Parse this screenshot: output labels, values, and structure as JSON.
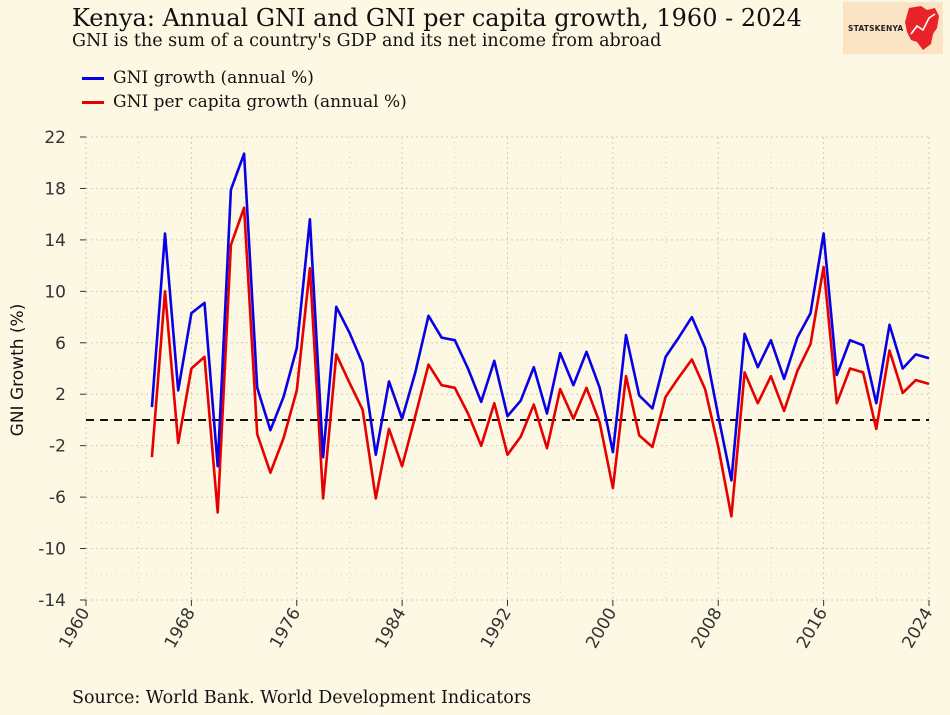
{
  "title": "Kenya: Annual GNI and GNI per capita growth, 1960 - 2024",
  "subtitle": "GNI is the sum of a country's GDP and its net income from abroad",
  "logo_text": "STATSKENYA",
  "source": "Source: World Bank. World Development Indicators",
  "colors": {
    "background": "#fdf8e3",
    "gni": "#0a00e6",
    "gni_pc": "#e60000",
    "grid": "#cdcdb8",
    "zero_line": "#111111",
    "logo_bg": "#fbe4c4",
    "logo_map": "#e8232a"
  },
  "chart_data": {
    "type": "line",
    "title": "Kenya: Annual GNI and GNI per capita growth, 1960 - 2024",
    "xlabel": "",
    "ylabel": "GNI Growth (%)",
    "xlim": [
      1960,
      2024
    ],
    "ylim": [
      -14,
      22
    ],
    "xticks": [
      1960,
      1968,
      1976,
      1984,
      1992,
      2000,
      2008,
      2016,
      2024
    ],
    "yticks": [
      -14,
      -10,
      -6,
      -2,
      2,
      6,
      10,
      14,
      18,
      22
    ],
    "grid": true,
    "legend_position": "top-left",
    "reference_line": 0,
    "x": [
      1965,
      1966,
      1967,
      1968,
      1969,
      1970,
      1971,
      1972,
      1973,
      1974,
      1975,
      1976,
      1977,
      1978,
      1979,
      1980,
      1981,
      1982,
      1983,
      1984,
      1985,
      1986,
      1987,
      1988,
      1989,
      1990,
      1991,
      1992,
      1993,
      1994,
      1995,
      1996,
      1997,
      1998,
      1999,
      2000,
      2001,
      2002,
      2003,
      2004,
      2005,
      2006,
      2007,
      2008,
      2009,
      2010,
      2011,
      2012,
      2013,
      2014,
      2015,
      2016,
      2017,
      2018,
      2019,
      2020,
      2021,
      2022,
      2023,
      2024
    ],
    "series": [
      {
        "name": "GNI growth (annual %)",
        "values": [
          1.0,
          14.5,
          2.3,
          8.3,
          9.1,
          -3.6,
          17.9,
          20.7,
          2.5,
          -0.8,
          1.8,
          5.6,
          15.6,
          -2.9,
          8.8,
          6.8,
          4.4,
          -2.7,
          3.0,
          0.1,
          3.7,
          8.1,
          6.4,
          6.2,
          4.0,
          1.4,
          4.6,
          0.3,
          1.5,
          4.1,
          0.5,
          5.2,
          2.7,
          5.3,
          2.5,
          -2.5,
          6.6,
          1.9,
          0.9,
          4.9,
          6.4,
          8.0,
          5.6,
          0.3,
          -4.7,
          6.7,
          4.1,
          6.2,
          3.2,
          6.4,
          8.3,
          14.5,
          3.5,
          6.2,
          5.8,
          1.3,
          7.4,
          4.0,
          5.1,
          4.8
        ]
      },
      {
        "name": "GNI per capita growth (annual %)",
        "values": [
          -2.9,
          10.0,
          -1.8,
          4.0,
          4.9,
          -7.2,
          13.6,
          16.5,
          -1.1,
          -4.1,
          -1.4,
          2.3,
          11.8,
          -6.1,
          5.1,
          2.9,
          0.8,
          -6.1,
          -0.7,
          -3.6,
          0.3,
          4.3,
          2.7,
          2.5,
          0.5,
          -2.0,
          1.3,
          -2.7,
          -1.3,
          1.2,
          -2.2,
          2.4,
          0.1,
          2.5,
          -0.2,
          -5.3,
          3.4,
          -1.2,
          -2.1,
          1.8,
          3.3,
          4.7,
          2.4,
          -2.1,
          -7.5,
          3.7,
          1.3,
          3.4,
          0.7,
          3.8,
          5.9,
          11.9,
          1.3,
          4.0,
          3.7,
          -0.7,
          5.4,
          2.1,
          3.1,
          2.8
        ]
      }
    ]
  }
}
